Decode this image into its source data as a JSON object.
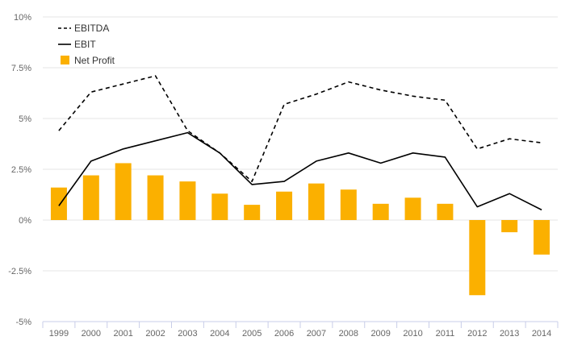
{
  "chart_data": {
    "type": "bar",
    "categories": [
      "1999",
      "2000",
      "2001",
      "2002",
      "2003",
      "2004",
      "2005",
      "2006",
      "2007",
      "2008",
      "2009",
      "2010",
      "2011",
      "2012",
      "2013",
      "2014"
    ],
    "series": [
      {
        "name": "EBITDA",
        "type": "line",
        "style": "dashed",
        "color": "#000000",
        "values": [
          4.4,
          6.3,
          6.7,
          7.1,
          4.4,
          3.3,
          1.9,
          5.7,
          6.2,
          6.8,
          6.4,
          6.1,
          5.9,
          3.5,
          4.0,
          3.8
        ]
      },
      {
        "name": "EBIT",
        "type": "line",
        "style": "solid",
        "color": "#000000",
        "values": [
          0.7,
          2.9,
          3.5,
          3.9,
          4.3,
          3.3,
          1.75,
          1.9,
          2.9,
          3.3,
          2.8,
          3.3,
          3.1,
          0.65,
          1.3,
          0.5
        ]
      },
      {
        "name": "Net Profit",
        "type": "bar",
        "color": "#FBB000",
        "values": [
          1.6,
          2.2,
          2.8,
          2.2,
          1.9,
          1.3,
          0.75,
          1.4,
          1.8,
          1.5,
          0.8,
          1.1,
          0.8,
          -3.7,
          -0.6,
          -1.7
        ]
      }
    ],
    "yticks": [
      "10%",
      "7.5%",
      "5%",
      "2.5%",
      "0%",
      "-2.5%",
      "-5%"
    ],
    "ylim": [
      -5,
      10
    ],
    "title": "",
    "xlabel": "",
    "ylabel": "",
    "grid": true,
    "legend": {
      "position": "top-left",
      "items": [
        "EBITDA",
        "EBIT",
        "Net Profit"
      ]
    }
  }
}
